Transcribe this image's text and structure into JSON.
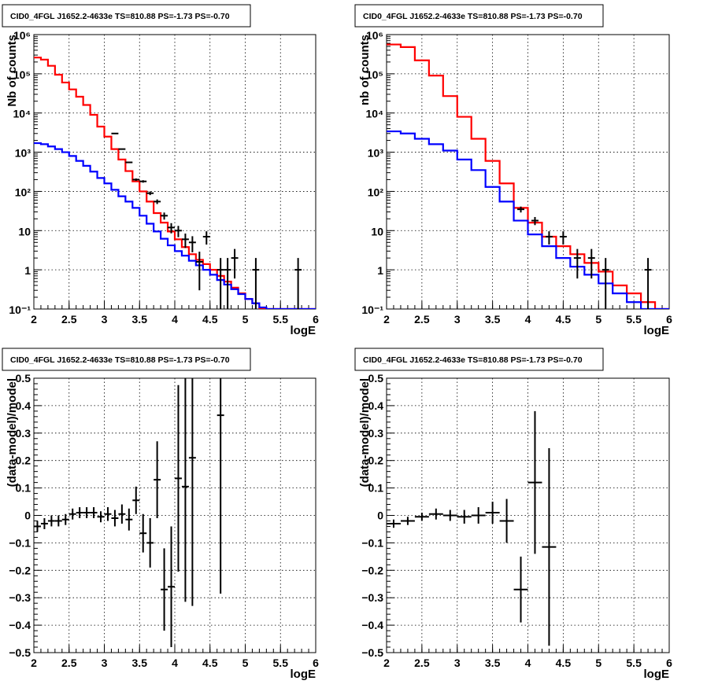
{
  "chart_data": [
    {
      "type": "step",
      "title": "CID0_4FGL J1652.2-4633e TS=810.88 PS=-1.73 PS=-0.70",
      "xlabel": "logE",
      "ylabel": "Nb of counts",
      "xlim": [
        2,
        6
      ],
      "ylim": [
        0.1,
        1000000
      ],
      "yscale": "log",
      "grid": true,
      "xticks": [
        "2",
        "2.5",
        "3",
        "3.5",
        "4",
        "4.5",
        "5",
        "5.5",
        "6"
      ],
      "yticks": [
        "10⁻¹",
        "1",
        "10",
        "10²",
        "10³",
        "10⁴",
        "10⁵",
        "10⁶"
      ],
      "series": [
        {
          "color": "#ff0000",
          "bin_edges": [
            2.0,
            2.1,
            2.2,
            2.3,
            2.4,
            2.5,
            2.6,
            2.7,
            2.8,
            2.9,
            3.0,
            3.1,
            3.2,
            3.3,
            3.4,
            3.5,
            3.6,
            3.7,
            3.8,
            3.9,
            4.0,
            4.1,
            4.2,
            4.3,
            4.4,
            4.5,
            4.6,
            4.7,
            4.8,
            4.9,
            5.0,
            5.1,
            5.2,
            5.3,
            5.4,
            5.5,
            5.6,
            5.7,
            5.8,
            5.9,
            6.0
          ],
          "values": [
            260000,
            230000,
            160000,
            95000,
            60000,
            40000,
            26000,
            16000,
            9000,
            4500,
            2500,
            1200,
            650,
            330,
            180,
            100,
            55,
            28,
            16,
            9.5,
            6,
            3.8,
            2.5,
            1.8,
            1.4,
            1.0,
            0.7,
            0.5,
            0.35,
            0.25,
            0.18,
            0.14,
            0.1,
            0.1,
            0.1,
            0.1,
            0.1,
            0.1,
            0.1,
            0.1
          ]
        },
        {
          "color": "#0000ff",
          "bin_edges": [
            2.0,
            2.1,
            2.2,
            2.3,
            2.4,
            2.5,
            2.6,
            2.7,
            2.8,
            2.9,
            3.0,
            3.1,
            3.2,
            3.3,
            3.4,
            3.5,
            3.6,
            3.7,
            3.8,
            3.9,
            4.0,
            4.1,
            4.2,
            4.3,
            4.4,
            4.5,
            4.6,
            4.7,
            4.8,
            4.9,
            5.0,
            5.1,
            5.2,
            5.3,
            5.4,
            5.5,
            5.6,
            5.7,
            5.8,
            5.9,
            6.0
          ],
          "values": [
            1700,
            1600,
            1400,
            1200,
            1000,
            800,
            600,
            450,
            320,
            220,
            160,
            110,
            75,
            55,
            38,
            24,
            15,
            9.5,
            6.2,
            4.2,
            3.0,
            2.3,
            1.7,
            1.3,
            1.0,
            0.75,
            0.55,
            0.42,
            0.32,
            0.24,
            0.18,
            0.14,
            0.11,
            0.1,
            0.1,
            0.1,
            0.1,
            0.1,
            0.1,
            0.1
          ]
        }
      ],
      "data_points": {
        "x": [
          3.15,
          3.25,
          3.35,
          3.45,
          3.55,
          3.65,
          3.75,
          3.85,
          3.95,
          4.05,
          4.15,
          4.25,
          4.35,
          4.45,
          4.65,
          4.75,
          4.85,
          5.15,
          5.75
        ],
        "y": [
          3000,
          1200,
          550,
          200,
          180,
          90,
          55,
          24,
          12,
          10,
          6,
          5,
          1.6,
          7,
          1,
          1,
          2,
          1,
          1
        ],
        "yerr": [
          50,
          35,
          23,
          14,
          13,
          9.5,
          7.4,
          4.9,
          3.5,
          3.2,
          2.4,
          2.2,
          1.3,
          2.6,
          1,
          1,
          1.4,
          1,
          1
        ]
      }
    },
    {
      "type": "step",
      "title": "CID0_4FGL J1652.2-4633e TS=810.88 PS=-1.73 PS=-0.70",
      "xlabel": "logE",
      "ylabel": "nb of counts",
      "xlim": [
        2,
        6
      ],
      "ylim": [
        0.1,
        1000000
      ],
      "yscale": "log",
      "grid": true,
      "xticks": [
        "2",
        "2.5",
        "3",
        "3.5",
        "4",
        "4.5",
        "5",
        "5.5",
        "6"
      ],
      "yticks": [
        "10⁻¹",
        "1",
        "10",
        "10²",
        "10³",
        "10⁴",
        "10⁵",
        "10⁶"
      ],
      "series": [
        {
          "color": "#ff0000",
          "bin_edges": [
            2.0,
            2.2,
            2.4,
            2.6,
            2.8,
            3.0,
            3.2,
            3.4,
            3.6,
            3.8,
            4.0,
            4.2,
            4.4,
            4.6,
            4.8,
            5.0,
            5.2,
            5.4,
            5.6,
            5.8,
            6.0
          ],
          "values": [
            560000,
            480000,
            220000,
            90000,
            27000,
            8000,
            2200,
            600,
            160,
            38,
            16,
            7,
            4,
            2.5,
            1.5,
            0.9,
            0.4,
            0.25,
            0.15,
            0.1
          ]
        },
        {
          "color": "#0000ff",
          "bin_edges": [
            2.0,
            2.2,
            2.4,
            2.6,
            2.8,
            3.0,
            3.2,
            3.4,
            3.6,
            3.8,
            4.0,
            4.2,
            4.4,
            4.6,
            4.8,
            5.0,
            5.2,
            5.4,
            5.6,
            5.8,
            6.0
          ],
          "values": [
            3400,
            3000,
            2200,
            1600,
            1100,
            650,
            350,
            130,
            55,
            18,
            8,
            4,
            2,
            1.2,
            0.75,
            0.45,
            0.25,
            0.15,
            0.1,
            0.1
          ]
        }
      ],
      "data_points": {
        "x": [
          3.9,
          4.1,
          4.3,
          4.5,
          4.7,
          4.9,
          5.1,
          5.7
        ],
        "y": [
          35,
          18,
          7,
          7,
          2,
          2,
          1,
          1
        ],
        "yerr": [
          6,
          4.2,
          2.6,
          2.6,
          1.4,
          1.4,
          1,
          1
        ]
      }
    },
    {
      "type": "scatter",
      "title": "CID0_4FGL J1652.2-4633e TS=810.88 PS=-1.73 PS=-0.70",
      "xlabel": "logE",
      "ylabel": "(data-model)/model",
      "xlim": [
        2,
        6
      ],
      "ylim": [
        -0.5,
        0.5
      ],
      "grid": true,
      "xticks": [
        "2",
        "2.5",
        "3",
        "3.5",
        "4",
        "4.5",
        "5",
        "5.5",
        "6"
      ],
      "yticks": [
        "−0.5",
        "−0.4",
        "−0.3",
        "−0.2",
        "−0.1",
        "0",
        "0.1",
        "0.2",
        "0.3",
        "0.4",
        "0.5"
      ],
      "x": [
        2.05,
        2.15,
        2.25,
        2.35,
        2.45,
        2.55,
        2.65,
        2.75,
        2.85,
        2.95,
        3.05,
        3.15,
        3.25,
        3.35,
        3.45,
        3.55,
        3.65,
        3.75,
        3.85,
        3.95,
        4.05,
        4.15,
        4.25,
        4.65
      ],
      "y": [
        -0.04,
        -0.03,
        -0.02,
        -0.02,
        -0.015,
        0.005,
        0.01,
        0.01,
        0.01,
        -0.005,
        0.005,
        -0.01,
        0.005,
        -0.015,
        0.055,
        -0.065,
        -0.1,
        0.13,
        -0.27,
        -0.26,
        0.135,
        0.105,
        0.21,
        0.365
      ],
      "yerr": [
        0.02,
        0.02,
        0.02,
        0.02,
        0.02,
        0.02,
        0.02,
        0.02,
        0.02,
        0.02,
        0.025,
        0.03,
        0.035,
        0.04,
        0.05,
        0.07,
        0.09,
        0.14,
        0.15,
        0.22,
        0.34,
        0.42,
        0.54,
        0.65
      ],
      "xerr": 0.05
    },
    {
      "type": "scatter",
      "title": "CID0_4FGL J1652.2-4633e TS=810.88 PS=-1.73 PS=-0.70",
      "xlabel": "logE",
      "ylabel": "(data-model)/model",
      "xlim": [
        2,
        6
      ],
      "ylim": [
        -0.5,
        0.5
      ],
      "grid": true,
      "xticks": [
        "2",
        "2.5",
        "3",
        "3.5",
        "4",
        "4.5",
        "5",
        "5.5",
        "6"
      ],
      "yticks": [
        "−0.5",
        "−0.4",
        "−0.3",
        "−0.2",
        "−0.1",
        "0",
        "0.1",
        "0.2",
        "0.3",
        "0.4",
        "0.5"
      ],
      "x": [
        2.1,
        2.3,
        2.5,
        2.7,
        2.9,
        3.1,
        3.3,
        3.5,
        3.7,
        3.9,
        4.1,
        4.3
      ],
      "y": [
        -0.03,
        -0.02,
        -0.005,
        0.005,
        0.0,
        -0.005,
        0.0,
        0.01,
        -0.02,
        -0.27,
        0.12,
        -0.115
      ],
      "yerr": [
        0.015,
        0.015,
        0.015,
        0.02,
        0.02,
        0.025,
        0.03,
        0.04,
        0.08,
        0.12,
        0.26,
        0.36
      ],
      "xerr": 0.1
    }
  ]
}
